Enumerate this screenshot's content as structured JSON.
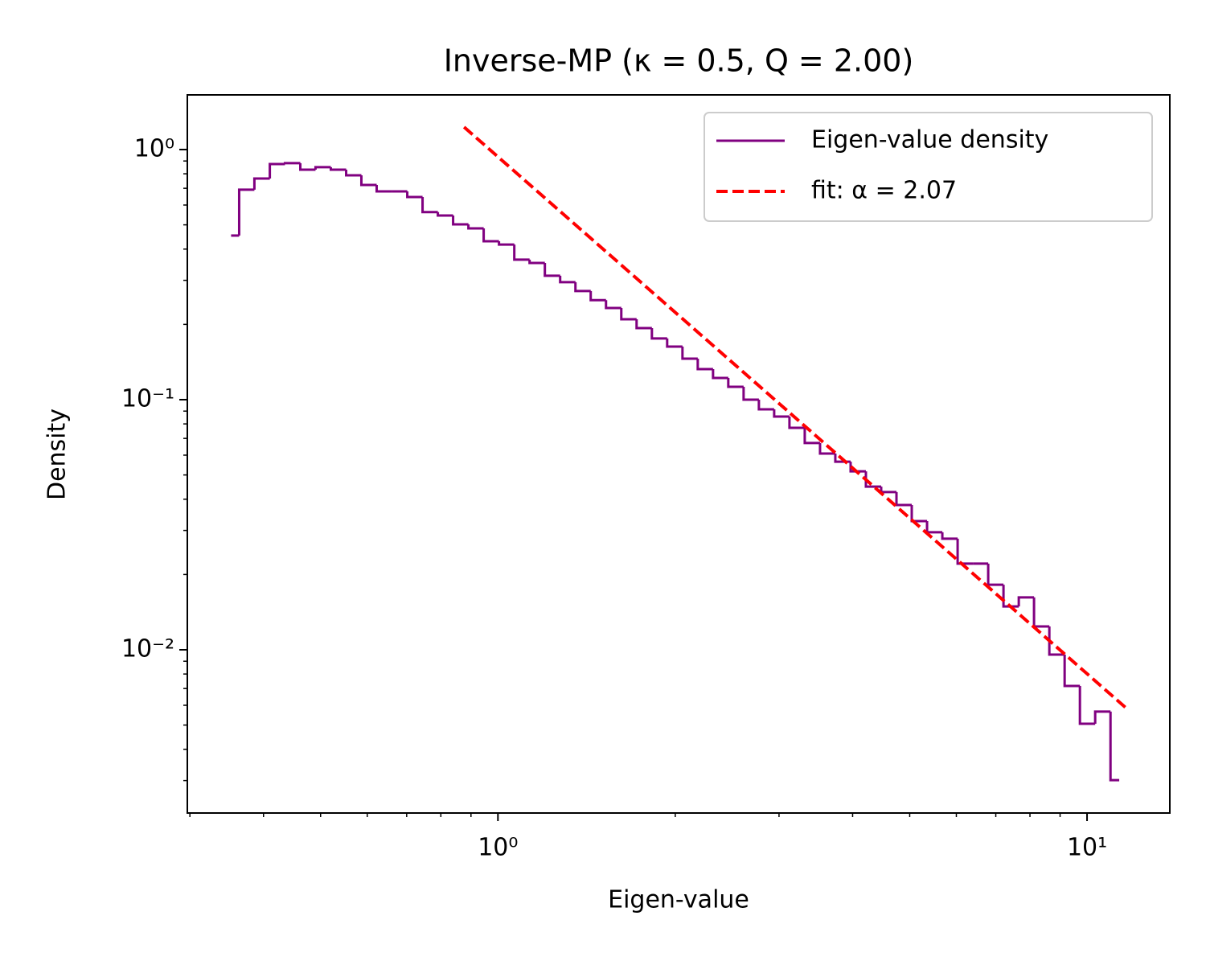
{
  "chart_data": {
    "type": "histogram",
    "title": "Inverse-MP  (κ = 0.5,  Q = 2.00)",
    "xlabel": "Eigen-value",
    "ylabel": "Density",
    "xscale": "log",
    "yscale": "log",
    "xlim": [
      0.297,
      13.82
    ],
    "ylim": [
      0.002225,
      1.654
    ],
    "xticks": [
      {
        "value": 1,
        "label": "10⁰"
      },
      {
        "value": 10,
        "label": "10¹"
      }
    ],
    "yticks": [
      {
        "value": 0.01,
        "label": "10⁻²"
      },
      {
        "value": 0.1,
        "label": "10⁻¹"
      },
      {
        "value": 1,
        "label": "10⁰"
      }
    ],
    "xticks_minor": [
      0.3,
      0.4,
      0.5,
      0.6,
      0.7,
      0.8,
      0.9,
      2,
      3,
      4,
      5,
      6,
      7,
      8,
      9
    ],
    "yticks_minor": [
      0.003,
      0.004,
      0.005,
      0.006,
      0.007,
      0.008,
      0.009,
      0.02,
      0.03,
      0.04,
      0.05,
      0.06,
      0.07,
      0.08,
      0.09,
      0.2,
      0.3,
      0.4,
      0.5,
      0.6,
      0.7,
      0.8,
      0.9
    ],
    "legend": "upper right",
    "series": [
      {
        "name": "Eigen-value density",
        "color": "#800080",
        "type": "histogram",
        "bins": [
          0.3524,
          0.3637,
          0.386,
          0.41,
          0.435,
          0.4619,
          0.4902,
          0.5204,
          0.5525,
          0.5864,
          0.6225,
          0.6609,
          0.7016,
          0.7448,
          0.7907,
          0.8393,
          0.891,
          0.9458,
          1.0041,
          1.066,
          1.1316,
          1.2013,
          1.2753,
          1.3538,
          1.4371,
          1.5256,
          1.6196,
          1.7193,
          1.8253,
          1.9376,
          2.057,
          2.1836,
          2.3181,
          2.4604,
          2.6122,
          2.773,
          2.9437,
          3.1249,
          3.3174,
          3.5217,
          3.7385,
          3.9687,
          4.2131,
          4.4725,
          4.7479,
          5.0402,
          5.3506,
          5.6801,
          6.0298,
          6.4011,
          6.7953,
          7.2137,
          7.6579,
          8.1283,
          8.6298,
          9.1611,
          9.7252,
          10.323,
          10.96,
          11.34
        ],
        "values": [
          0.453,
          0.691,
          0.766,
          0.875,
          0.882,
          0.831,
          0.85,
          0.831,
          0.789,
          0.722,
          0.68,
          0.68,
          0.646,
          0.562,
          0.545,
          0.502,
          0.484,
          0.43,
          0.417,
          0.363,
          0.352,
          0.313,
          0.295,
          0.272,
          0.25,
          0.2326,
          0.2097,
          0.1933,
          0.1756,
          0.163,
          0.1459,
          0.1325,
          0.1221,
          0.1126,
          0.1,
          0.0915,
          0.0856,
          0.0772,
          0.0671,
          0.0609,
          0.0565,
          0.0517,
          0.0449,
          0.0427,
          0.0379,
          0.0327,
          0.0295,
          0.0278,
          0.0221,
          0.0221,
          0.0182,
          0.0149,
          0.0162,
          0.0124,
          0.00957,
          0.00717,
          0.00506,
          0.00566,
          0.00301
        ]
      },
      {
        "name": "fit: α = 2.07",
        "color": "#ff0000",
        "type": "line",
        "dashed": true,
        "x": [
          0.876,
          11.63
        ],
        "values": [
          1.23,
          0.00587
        ]
      }
    ]
  }
}
